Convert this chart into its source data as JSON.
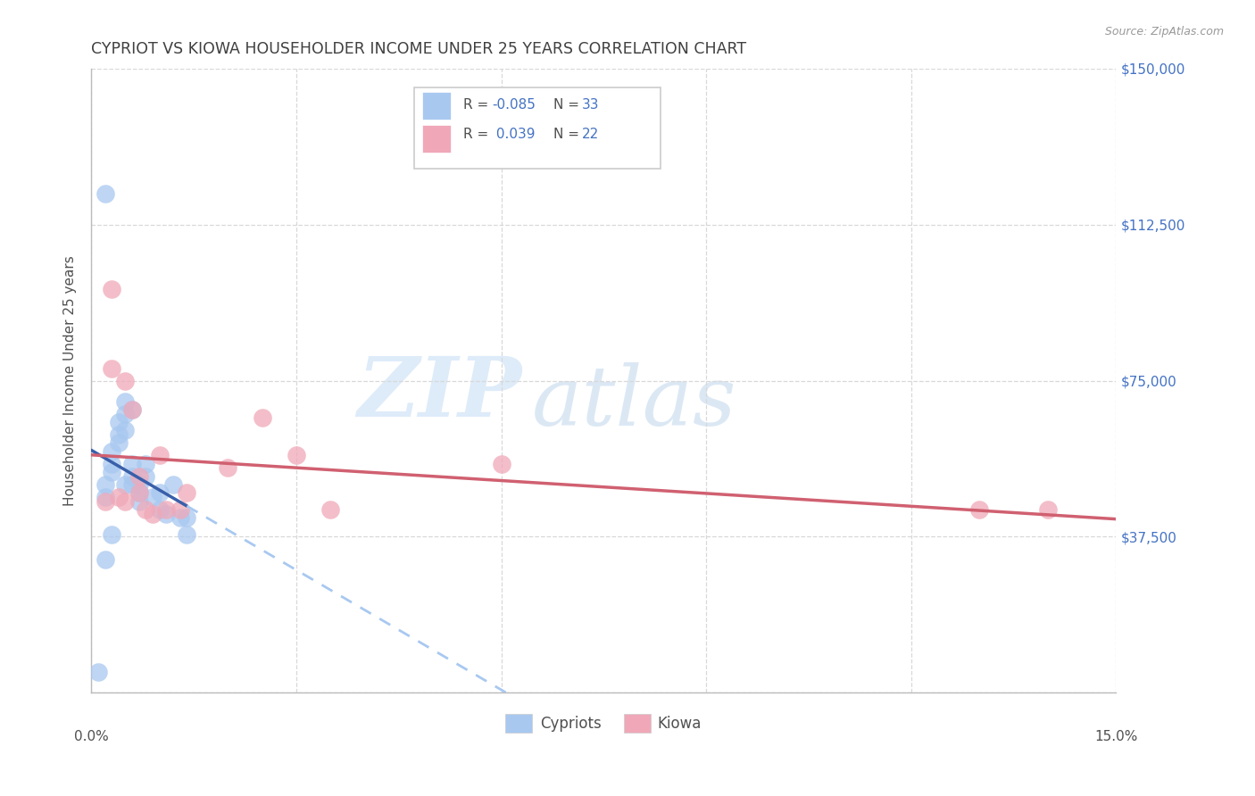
{
  "title": "CYPRIOT VS KIOWA HOUSEHOLDER INCOME UNDER 25 YEARS CORRELATION CHART",
  "source": "Source: ZipAtlas.com",
  "ylabel": "Householder Income Under 25 years",
  "watermark_zip": "ZIP",
  "watermark_atlas": "atlas",
  "xlim": [
    0.0,
    0.15
  ],
  "ylim": [
    0,
    150000
  ],
  "yticks": [
    0,
    37500,
    75000,
    112500,
    150000
  ],
  "ytick_labels": [
    "",
    "$37,500",
    "$75,000",
    "$112,500",
    "$150,000"
  ],
  "xticks": [
    0.0,
    0.03,
    0.06,
    0.09,
    0.12,
    0.15
  ],
  "xtick_labels": [
    "0.0%",
    "",
    "",
    "",
    "",
    "15.0%"
  ],
  "cypriot_color": "#a8c8f0",
  "kiowa_color": "#f0a8b8",
  "trend_blue_solid": "#3a5faa",
  "trend_pink_solid": "#d06070",
  "trend_blue_dashed": "#a8c8f0",
  "grid_color": "#d8d8d8",
  "title_color": "#404040",
  "label_color": "#505050",
  "right_label_color": "#4472c4",
  "legend_text_color": "#4472c4",
  "background_color": "#ffffff",
  "cypriot_x": [
    0.001,
    0.002,
    0.002,
    0.002,
    0.003,
    0.003,
    0.003,
    0.003,
    0.004,
    0.004,
    0.004,
    0.005,
    0.005,
    0.005,
    0.005,
    0.006,
    0.006,
    0.006,
    0.006,
    0.007,
    0.007,
    0.007,
    0.008,
    0.008,
    0.009,
    0.01,
    0.01,
    0.011,
    0.012,
    0.013,
    0.014,
    0.014,
    0.002
  ],
  "cypriot_y": [
    5000,
    47000,
    50000,
    120000,
    53000,
    55000,
    58000,
    38000,
    60000,
    62000,
    65000,
    63000,
    67000,
    70000,
    50000,
    55000,
    52000,
    50000,
    68000,
    48000,
    50000,
    46000,
    55000,
    52000,
    47000,
    48000,
    44000,
    43000,
    50000,
    42000,
    38000,
    42000,
    32000
  ],
  "kiowa_x": [
    0.002,
    0.003,
    0.003,
    0.004,
    0.005,
    0.005,
    0.006,
    0.007,
    0.007,
    0.008,
    0.009,
    0.01,
    0.011,
    0.013,
    0.014,
    0.02,
    0.025,
    0.03,
    0.035,
    0.06,
    0.13,
    0.14
  ],
  "kiowa_y": [
    46000,
    97000,
    78000,
    47000,
    75000,
    46000,
    68000,
    48000,
    52000,
    44000,
    43000,
    57000,
    44000,
    44000,
    48000,
    54000,
    66000,
    57000,
    44000,
    55000,
    44000,
    44000
  ],
  "legend_r1": "R = -0.085",
  "legend_n1": "N = 33",
  "legend_r2": "R =  0.039",
  "legend_n2": "N = 22"
}
